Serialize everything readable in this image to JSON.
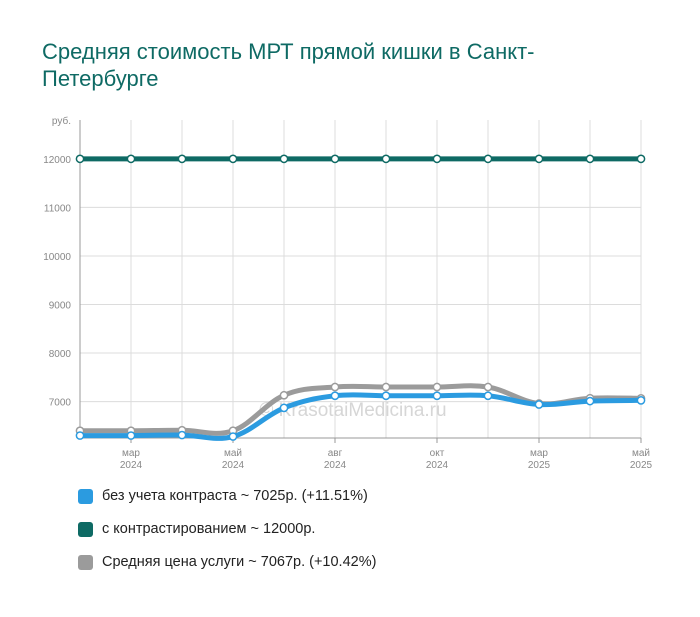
{
  "title": "Средняя стоимость МРТ прямой кишки в Санкт-Петербурге",
  "watermark": "© KrasotaiMedicina.ru",
  "colors": {
    "grid": "#dcdcdc",
    "axis": "#999999",
    "tick_text": "#888888",
    "point_fill": "#ffffff"
  },
  "chart_data": {
    "type": "line",
    "y_unit_label": "руб.",
    "ylim": [
      6250,
      12800
    ],
    "y_ticks": [
      7000,
      8000,
      9000,
      10000,
      11000,
      12000
    ],
    "x_labels": [
      {
        "index": 1,
        "month": "мар",
        "year": "2024"
      },
      {
        "index": 3,
        "month": "май",
        "year": "2024"
      },
      {
        "index": 5,
        "month": "авг",
        "year": "2024"
      },
      {
        "index": 7,
        "month": "окт",
        "year": "2024"
      },
      {
        "index": 9,
        "month": "мар",
        "year": "2025"
      },
      {
        "index": 11,
        "month": "май",
        "year": "2025"
      }
    ],
    "point_count": 12,
    "series": [
      {
        "name": "Средняя цена услуги",
        "legend_text": "Средняя цена услуги ~ 7067р. (+10.42%)",
        "color": "#9b9b9b",
        "values": [
          6400,
          6400,
          6410,
          6400,
          7130,
          7300,
          7300,
          7300,
          7300,
          6960,
          7070,
          7067
        ]
      },
      {
        "name": "без учета контраста",
        "legend_text": "без учета контраста ~ 7025р. (+11.51%)",
        "color": "#2b9be0",
        "values": [
          6300,
          6300,
          6310,
          6280,
          6870,
          7120,
          7120,
          7120,
          7120,
          6940,
          7010,
          7025
        ]
      },
      {
        "name": "с контрастированием",
        "legend_text": "с контрастированием ~ 12000р.",
        "color": "#0e6a64",
        "values": [
          12000,
          12000,
          12000,
          12000,
          12000,
          12000,
          12000,
          12000,
          12000,
          12000,
          12000,
          12000
        ]
      }
    ],
    "legend_order": [
      1,
      2,
      0
    ],
    "grid": true,
    "legend_position": "bottom"
  }
}
